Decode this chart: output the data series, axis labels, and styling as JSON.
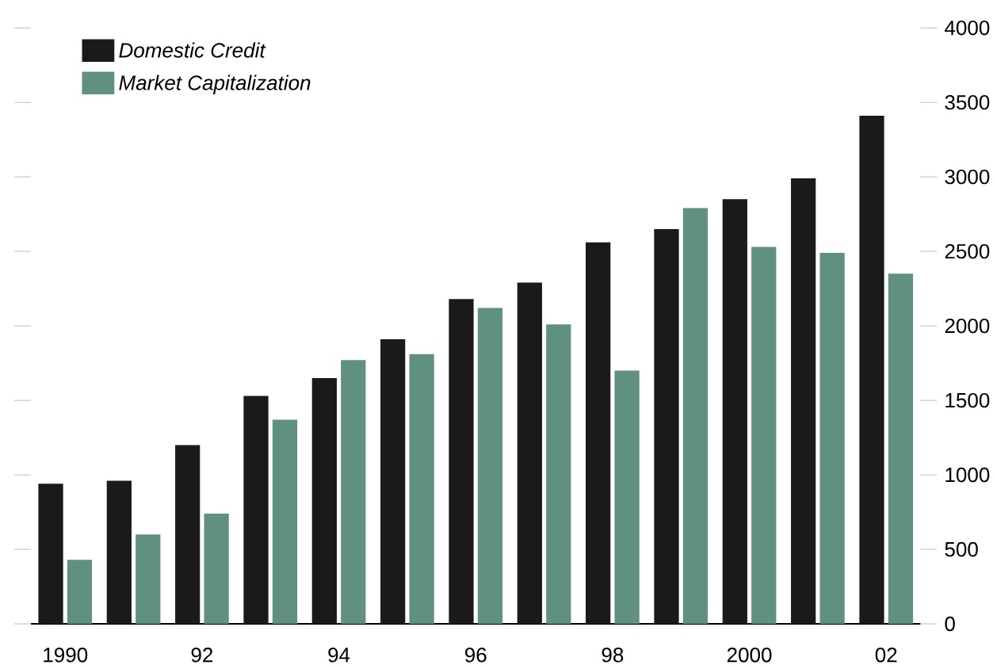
{
  "chart_data": {
    "type": "bar",
    "categories": [
      "1990",
      null,
      "92",
      null,
      "94",
      null,
      "96",
      null,
      "98",
      null,
      "2000",
      null,
      "02"
    ],
    "series": [
      {
        "name": "Domestic Credit",
        "color": "#1a1a1a",
        "values": [
          940,
          960,
          1200,
          1530,
          1650,
          1910,
          2180,
          2290,
          2560,
          2650,
          2850,
          2990,
          3410
        ]
      },
      {
        "name": "Market Capitalization",
        "color": "#5f9080",
        "values": [
          430,
          600,
          740,
          1370,
          1770,
          1810,
          2120,
          2010,
          1700,
          2790,
          2530,
          2490,
          2350
        ]
      }
    ],
    "ylim": [
      0,
      4000
    ],
    "yticks": [
      0,
      500,
      1000,
      1500,
      2000,
      2500,
      3000,
      3500,
      4000
    ],
    "legend": "top left",
    "grid": false
  }
}
